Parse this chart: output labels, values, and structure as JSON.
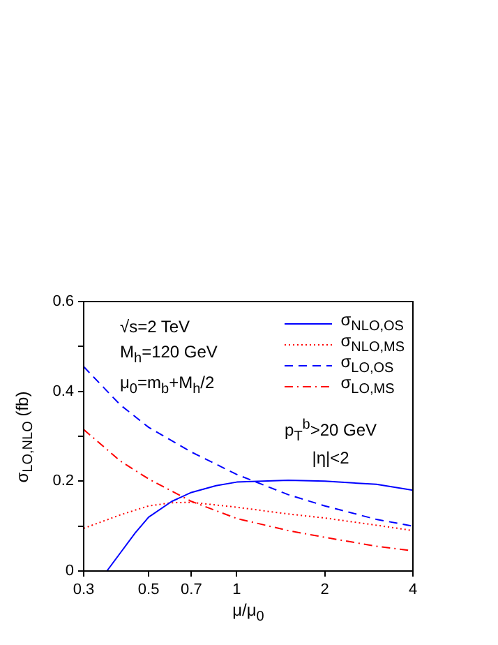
{
  "chart_data": {
    "type": "line",
    "xlabel": "μ/μ$_{0}$",
    "ylabel": "σ$_{LO,NLO}$ (fb)",
    "log": "x",
    "grid": false,
    "legend": "top right",
    "marker": "none",
    "xlim": [
      0.3,
      4
    ],
    "xticks": [
      0.3,
      0.5,
      0.7,
      1,
      2,
      4
    ],
    "ylim": [
      0,
      0.6
    ],
    "yticks": [
      0,
      {
        "value": 0.1,
        "label": null
      },
      0.2,
      {
        "value": 0.3,
        "label": null
      },
      0.4,
      {
        "value": 0.5,
        "label": null
      },
      0.6
    ],
    "annotations": [
      "√s=2 TeV",
      "M$_{h}$=120 GeV",
      "μ$_{0}$=m$_{b}$+M$_{h}$/2",
      "p$_{T}$$^{b}$>20 GeV",
      "|η|<2"
    ],
    "series": [
      {
        "name": "σ$_{NLO,OS}$",
        "color": "#0000ff",
        "line_style": "solid",
        "x": [
          0.36,
          0.4,
          0.45,
          0.5,
          0.6,
          0.7,
          0.85,
          1,
          1.5,
          2,
          3,
          4
        ],
        "values": [
          0,
          0.04,
          0.085,
          0.12,
          0.155,
          0.175,
          0.19,
          0.198,
          0.202,
          0.2,
          0.193,
          0.18
        ]
      },
      {
        "name": "σ$_{NLO,MS}$",
        "color": "#ff0000",
        "line_style": "dotted",
        "x": [
          0.3,
          0.4,
          0.5,
          0.6,
          0.7,
          1,
          1.5,
          2,
          3,
          4
        ],
        "values": [
          0.095,
          0.125,
          0.145,
          0.152,
          0.153,
          0.142,
          0.127,
          0.118,
          0.102,
          0.09
        ]
      },
      {
        "name": "σ$_{LO,OS}$",
        "color": "#0000ff",
        "line_style": "dashed",
        "x": [
          0.3,
          0.4,
          0.5,
          0.7,
          1,
          1.5,
          2,
          3,
          4
        ],
        "values": [
          0.455,
          0.37,
          0.32,
          0.265,
          0.215,
          0.17,
          0.145,
          0.115,
          0.1
        ]
      },
      {
        "name": "σ$_{LO,MS}$",
        "color": "#ff0000",
        "line_style": "dashdot",
        "x": [
          0.3,
          0.4,
          0.5,
          0.7,
          1,
          1.5,
          2,
          3,
          4
        ],
        "values": [
          0.315,
          0.245,
          0.205,
          0.155,
          0.117,
          0.09,
          0.075,
          0.055,
          0.045
        ]
      }
    ]
  }
}
